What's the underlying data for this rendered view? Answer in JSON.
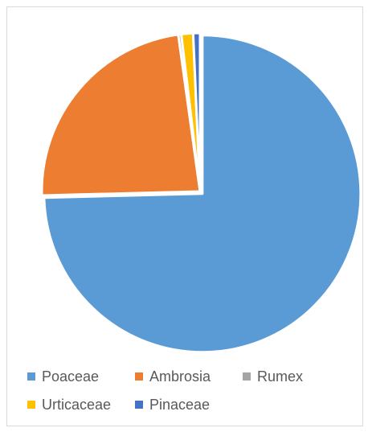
{
  "chart_data": {
    "type": "pie",
    "categories": [
      "Poaceae",
      "Ambrosia",
      "Rumex",
      "Urticaceae",
      "Pinaceae"
    ],
    "values": [
      74.6,
      23.2,
      0.3,
      1.2,
      0.7
    ],
    "colors": [
      "#5b9bd5",
      "#ed7d31",
      "#a5a5a5",
      "#ffc000",
      "#4472c4"
    ],
    "start_angle_deg": 0,
    "direction": "clockwise",
    "exploded_first_slice": true,
    "legend_position": "bottom"
  }
}
